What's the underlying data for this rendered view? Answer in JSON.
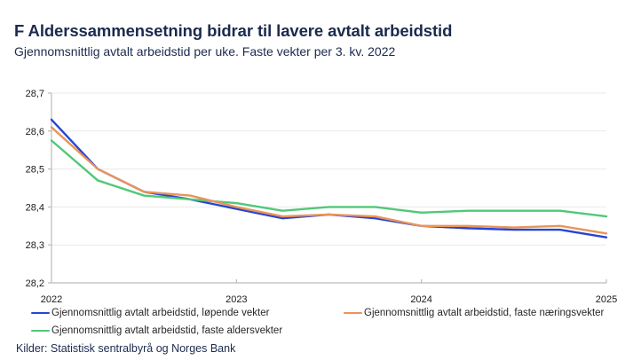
{
  "header": {
    "title": "F Alderssammensetning bidrar til lavere avtalt arbeidstid",
    "subtitle": "Gjennomsnittlig avtalt arbeidstid per uke. Faste vekter per 3. kv. 2022"
  },
  "chart_data": {
    "type": "line",
    "title": "F Alderssammensetning bidrar til lavere avtalt arbeidstid",
    "subtitle": "Gjennomsnittlig avtalt arbeidstid per uke. Faste vekter per 3. kv. 2022",
    "x": [
      2022.0,
      2022.25,
      2022.5,
      2022.75,
      2023.0,
      2023.25,
      2023.5,
      2023.75,
      2024.0,
      2024.25,
      2024.5,
      2024.75,
      2025.0
    ],
    "xlim": [
      2022,
      2025
    ],
    "ylim": [
      28.2,
      28.7
    ],
    "x_tick_values": [
      2022,
      2023,
      2024,
      2025
    ],
    "x_tick_labels": [
      "2022",
      "2023",
      "2024",
      "2025"
    ],
    "y_tick_values": [
      28.2,
      28.3,
      28.4,
      28.5,
      28.6,
      28.7
    ],
    "y_tick_labels": [
      "28,2",
      "28,3",
      "28,4",
      "28,5",
      "28,6",
      "28,7"
    ],
    "grid": "horizontal",
    "legend_position": "bottom",
    "series": [
      {
        "name": "Gjennomsnittlig avtalt arbeidstid, løpende vekter",
        "color": "#2845d5",
        "values": [
          28.63,
          28.5,
          28.44,
          28.42,
          28.395,
          28.37,
          28.38,
          28.37,
          28.35,
          28.344,
          28.34,
          28.34,
          28.32
        ]
      },
      {
        "name": "Gjennomsnittlig avtalt arbeidstid, faste næringsvekter",
        "color": "#e8945a",
        "values": [
          28.61,
          28.5,
          28.44,
          28.43,
          28.4,
          28.375,
          28.38,
          28.375,
          28.35,
          28.35,
          28.346,
          28.35,
          28.33
        ]
      },
      {
        "name": "Gjennomsnittlig avtalt arbeidstid, faste aldersvekter",
        "color": "#50c878",
        "values": [
          28.575,
          28.47,
          28.43,
          28.42,
          28.41,
          28.39,
          28.4,
          28.4,
          28.385,
          28.39,
          28.39,
          28.39,
          28.375
        ]
      }
    ],
    "colors": {
      "axis": "#bcbcbc",
      "grid": "#e9e9e9",
      "tick_text": "#1a1a1a"
    }
  },
  "footer": {
    "source": "Kilder: Statistisk sentralbyrå og Norges Bank"
  }
}
